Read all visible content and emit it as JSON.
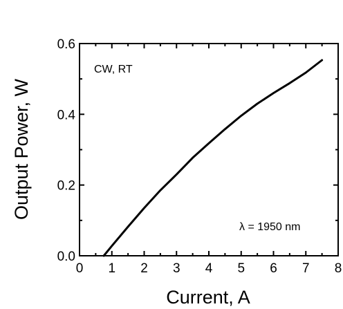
{
  "chart_data": {
    "type": "line",
    "title": "",
    "xlabel": "Current, A",
    "ylabel": "Output Power, W",
    "xlim": [
      0,
      8
    ],
    "ylim": [
      0,
      0.6
    ],
    "x_ticks": [
      "0",
      "1",
      "2",
      "3",
      "4",
      "5",
      "6",
      "7",
      "8"
    ],
    "y_ticks": [
      "0.0",
      "0.2",
      "0.4",
      "0.6"
    ],
    "grid": false,
    "legend": "none",
    "annotations": {
      "conditions": "CW, RT",
      "wavelength": "λ = 1950 nm"
    },
    "series": [
      {
        "color": "#000000",
        "x": [
          0.75,
          1.0,
          1.5,
          2.0,
          2.5,
          3.0,
          3.5,
          4.0,
          4.5,
          5.0,
          5.5,
          6.0,
          6.5,
          7.0,
          7.5
        ],
        "y": [
          0.0,
          0.028,
          0.082,
          0.135,
          0.185,
          0.23,
          0.277,
          0.318,
          0.358,
          0.396,
          0.43,
          0.46,
          0.488,
          0.518,
          0.553
        ]
      }
    ]
  }
}
